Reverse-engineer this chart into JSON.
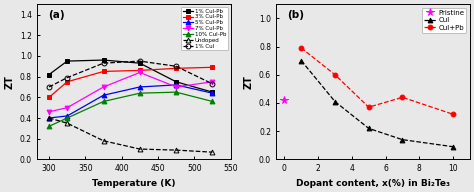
{
  "panel_a": {
    "title": "(a)",
    "xlabel": "Temperature (K)",
    "ylabel": "ZT",
    "xlim": [
      283,
      545
    ],
    "ylim": [
      0.0,
      1.5
    ],
    "xticks": [
      300,
      350,
      400,
      450,
      500,
      550
    ],
    "yticks": [
      0.0,
      0.2,
      0.4,
      0.6,
      0.8,
      1.0,
      1.2,
      1.4
    ],
    "series": [
      {
        "label": "1% CuI-Pb",
        "color": "#000000",
        "marker": "s",
        "linestyle": "-",
        "markerfc": "#000000",
        "x": [
          300,
          325,
          375,
          425,
          475,
          525
        ],
        "y": [
          0.82,
          0.95,
          0.96,
          0.93,
          0.75,
          0.65
        ]
      },
      {
        "label": "3% CuI-Pb",
        "color": "#ff0000",
        "marker": "s",
        "linestyle": "-",
        "markerfc": "#ff0000",
        "x": [
          300,
          325,
          375,
          425,
          475,
          525
        ],
        "y": [
          0.6,
          0.75,
          0.85,
          0.86,
          0.88,
          0.89
        ]
      },
      {
        "label": "5% CuI-Pb",
        "color": "#0000ff",
        "marker": "^",
        "linestyle": "-",
        "markerfc": "#0000ff",
        "x": [
          300,
          325,
          375,
          425,
          475,
          525
        ],
        "y": [
          0.4,
          0.42,
          0.62,
          0.7,
          0.72,
          0.64
        ]
      },
      {
        "label": "7% CuI-Pb",
        "color": "#ff00ff",
        "marker": "v",
        "linestyle": "-",
        "markerfc": "#ff00ff",
        "x": [
          300,
          325,
          375,
          425,
          475,
          525
        ],
        "y": [
          0.46,
          0.5,
          0.7,
          0.84,
          0.7,
          0.75
        ]
      },
      {
        "label": "10% CuI-Pb",
        "color": "#008000",
        "marker": "^",
        "linestyle": "-",
        "markerfc": "#008000",
        "x": [
          300,
          325,
          375,
          425,
          475,
          525
        ],
        "y": [
          0.32,
          0.4,
          0.56,
          0.64,
          0.65,
          0.56
        ]
      },
      {
        "label": "Undoped",
        "color": "#000000",
        "marker": "^",
        "linestyle": "--",
        "markerfc": "none",
        "x": [
          300,
          325,
          375,
          425,
          475,
          525
        ],
        "y": [
          0.4,
          0.35,
          0.18,
          0.1,
          0.09,
          0.07
        ]
      },
      {
        "label": "1% CuI",
        "color": "#000000",
        "marker": "o",
        "linestyle": "--",
        "markerfc": "none",
        "x": [
          300,
          325,
          375,
          425,
          475,
          525
        ],
        "y": [
          0.7,
          0.79,
          0.93,
          0.95,
          0.9,
          0.73
        ]
      }
    ]
  },
  "panel_b": {
    "title": "(b)",
    "xlabel": "Dopant content, x(%) in Bi₂Te₃",
    "ylabel": "ZT",
    "xlim": [
      -0.5,
      11
    ],
    "ylim": [
      0.0,
      1.1
    ],
    "xticks": [
      0,
      2,
      4,
      6,
      8,
      10
    ],
    "yticks": [
      0.0,
      0.2,
      0.4,
      0.6,
      0.8,
      1.0
    ],
    "series": [
      {
        "label": "Pristine",
        "color": "#ff00ff",
        "marker": "*",
        "linestyle": "none",
        "markerfc": "#ff00ff",
        "x": [
          0
        ],
        "y": [
          0.42
        ]
      },
      {
        "label": "CuI",
        "color": "#000000",
        "marker": "^",
        "linestyle": "--",
        "markerfc": "#000000",
        "x": [
          1,
          3,
          5,
          7,
          10
        ],
        "y": [
          0.7,
          0.41,
          0.22,
          0.14,
          0.09
        ]
      },
      {
        "label": "CuI+Pb",
        "color": "#ff0000",
        "marker": "o",
        "linestyle": "--",
        "markerfc": "#ff0000",
        "x": [
          1,
          3,
          5,
          7,
          10
        ],
        "y": [
          0.79,
          0.6,
          0.37,
          0.44,
          0.32
        ]
      }
    ]
  },
  "bg_color": "#e8e8e8",
  "ax_bg_color": "#e8e8e8"
}
